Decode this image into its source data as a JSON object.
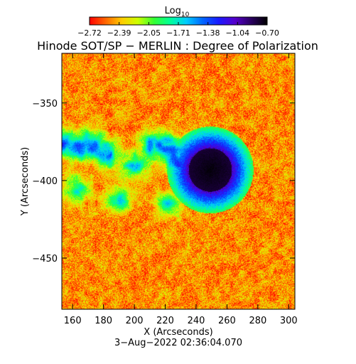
{
  "chart_data": {
    "type": "heatmap",
    "title": "Hinode SOT/SP − MERLIN : Degree of Polarization",
    "colorbar": {
      "label_base": "Log",
      "label_sub": "10",
      "ticks": [
        "−2.72",
        "−2.39",
        "−2.05",
        "−1.71",
        "−1.38",
        "−1.04",
        "−0.70"
      ],
      "range": [
        -2.72,
        -0.7
      ],
      "colormap": [
        "#ff0000",
        "#ff6600",
        "#ffcc00",
        "#ccff00",
        "#33ff33",
        "#00ff99",
        "#00ccff",
        "#0066ff",
        "#1a1aff",
        "#5500cc",
        "#2a0060",
        "#000000"
      ]
    },
    "xlabel": "X (Arcseconds)",
    "ylabel": "Y (Arcseconds)",
    "xlim": [
      153,
      304
    ],
    "ylim": [
      -483,
      -318
    ],
    "xticks": [
      160,
      180,
      200,
      220,
      240,
      260,
      280,
      300
    ],
    "yticks": [
      -350,
      -400,
      -450
    ],
    "timestamp": "3−Aug−2022 02:36:04.070",
    "features": {
      "sunspot": {
        "x": 249,
        "y": -393,
        "umbra_radius": 14,
        "penumbra_radius": 18,
        "log_dop_umbra": -0.72,
        "log_dop_penumbra": -1.05
      },
      "plage_network": [
        {
          "x": 154,
          "y": -375,
          "log_dop": -1.05
        },
        {
          "x": 165,
          "y": -378,
          "log_dop": -1.2
        },
        {
          "x": 173,
          "y": -376,
          "log_dop": -1.15
        },
        {
          "x": 182,
          "y": -384,
          "log_dop": -1.2
        },
        {
          "x": 200,
          "y": -390,
          "log_dop": -1.35
        },
        {
          "x": 212,
          "y": -377,
          "log_dop": -1.25
        },
        {
          "x": 222,
          "y": -378,
          "log_dop": -1.2
        },
        {
          "x": 228,
          "y": -388,
          "log_dop": -1.15
        },
        {
          "x": 236,
          "y": -380,
          "log_dop": -1.3
        },
        {
          "x": 162,
          "y": -405,
          "log_dop": -1.5
        },
        {
          "x": 190,
          "y": -412,
          "log_dop": -1.55
        },
        {
          "x": 222,
          "y": -415,
          "log_dop": -1.6
        }
      ]
    }
  }
}
